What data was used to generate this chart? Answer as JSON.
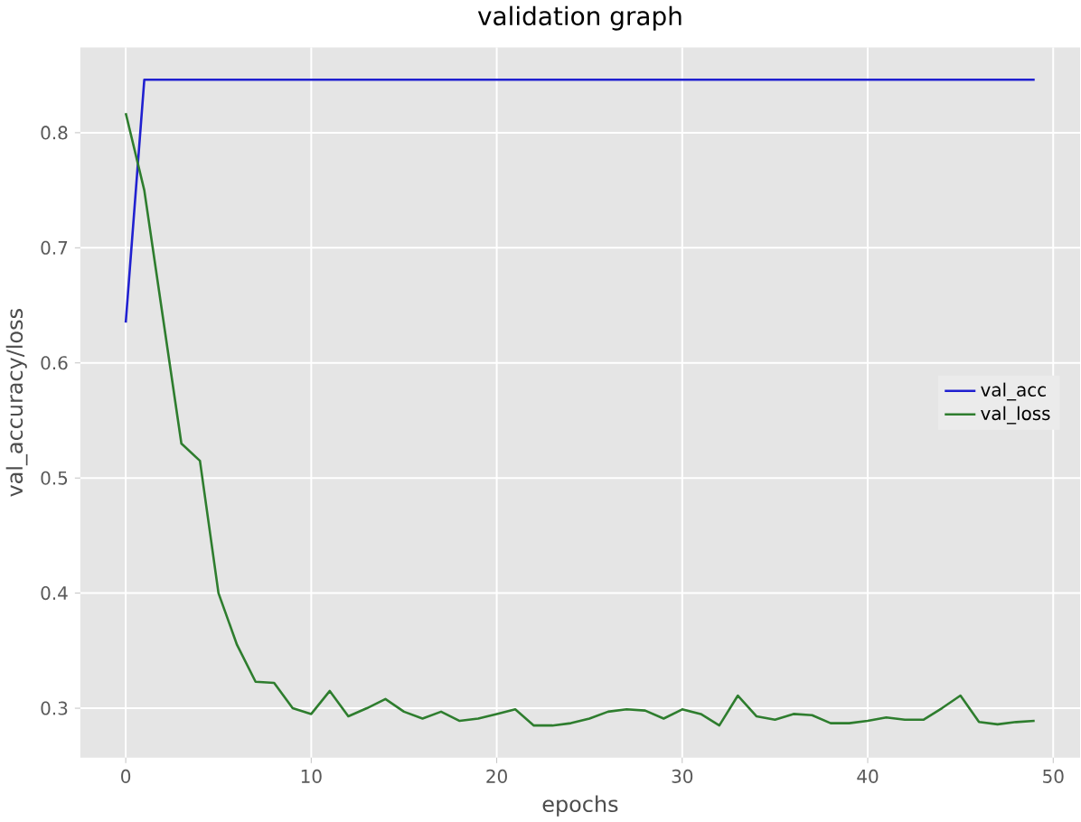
{
  "chart_data": {
    "type": "line",
    "title": "validation graph",
    "xlabel": "epochs",
    "ylabel": "val_accuracy/loss",
    "x": [
      0,
      1,
      2,
      3,
      4,
      5,
      6,
      7,
      8,
      9,
      10,
      11,
      12,
      13,
      14,
      15,
      16,
      17,
      18,
      19,
      20,
      21,
      22,
      23,
      24,
      25,
      26,
      27,
      28,
      29,
      30,
      31,
      32,
      33,
      34,
      35,
      36,
      37,
      38,
      39,
      40,
      41,
      42,
      43,
      44,
      45,
      46,
      47,
      48,
      49
    ],
    "series": [
      {
        "name": "val_acc",
        "color": "#2020d0",
        "values": [
          0.635,
          0.846,
          0.846,
          0.846,
          0.846,
          0.846,
          0.846,
          0.846,
          0.846,
          0.846,
          0.846,
          0.846,
          0.846,
          0.846,
          0.846,
          0.846,
          0.846,
          0.846,
          0.846,
          0.846,
          0.846,
          0.846,
          0.846,
          0.846,
          0.846,
          0.846,
          0.846,
          0.846,
          0.846,
          0.846,
          0.846,
          0.846,
          0.846,
          0.846,
          0.846,
          0.846,
          0.846,
          0.846,
          0.846,
          0.846,
          0.846,
          0.846,
          0.846,
          0.846,
          0.846,
          0.846,
          0.846,
          0.846,
          0.846,
          0.846
        ]
      },
      {
        "name": "val_loss",
        "color": "#2e7d2e",
        "values": [
          0.817,
          0.75,
          0.64,
          0.53,
          0.515,
          0.4,
          0.355,
          0.323,
          0.322,
          0.3,
          0.295,
          0.315,
          0.293,
          0.3,
          0.308,
          0.297,
          0.291,
          0.297,
          0.289,
          0.291,
          0.295,
          0.299,
          0.285,
          0.285,
          0.287,
          0.291,
          0.297,
          0.299,
          0.298,
          0.291,
          0.299,
          0.295,
          0.285,
          0.311,
          0.293,
          0.29,
          0.295,
          0.294,
          0.287,
          0.287,
          0.289,
          0.292,
          0.29,
          0.29,
          0.3,
          0.311,
          0.288,
          0.286,
          0.288,
          0.289
        ]
      }
    ],
    "xlim": [
      -2.45,
      51.45
    ],
    "ylim": [
      0.257,
      0.874
    ],
    "xticks": [
      0,
      10,
      20,
      30,
      40,
      50
    ],
    "yticks": [
      0.3,
      0.4,
      0.5,
      0.6,
      0.7,
      0.8
    ],
    "grid": true,
    "legend": "right",
    "marker": "none",
    "line_style": "solid"
  }
}
